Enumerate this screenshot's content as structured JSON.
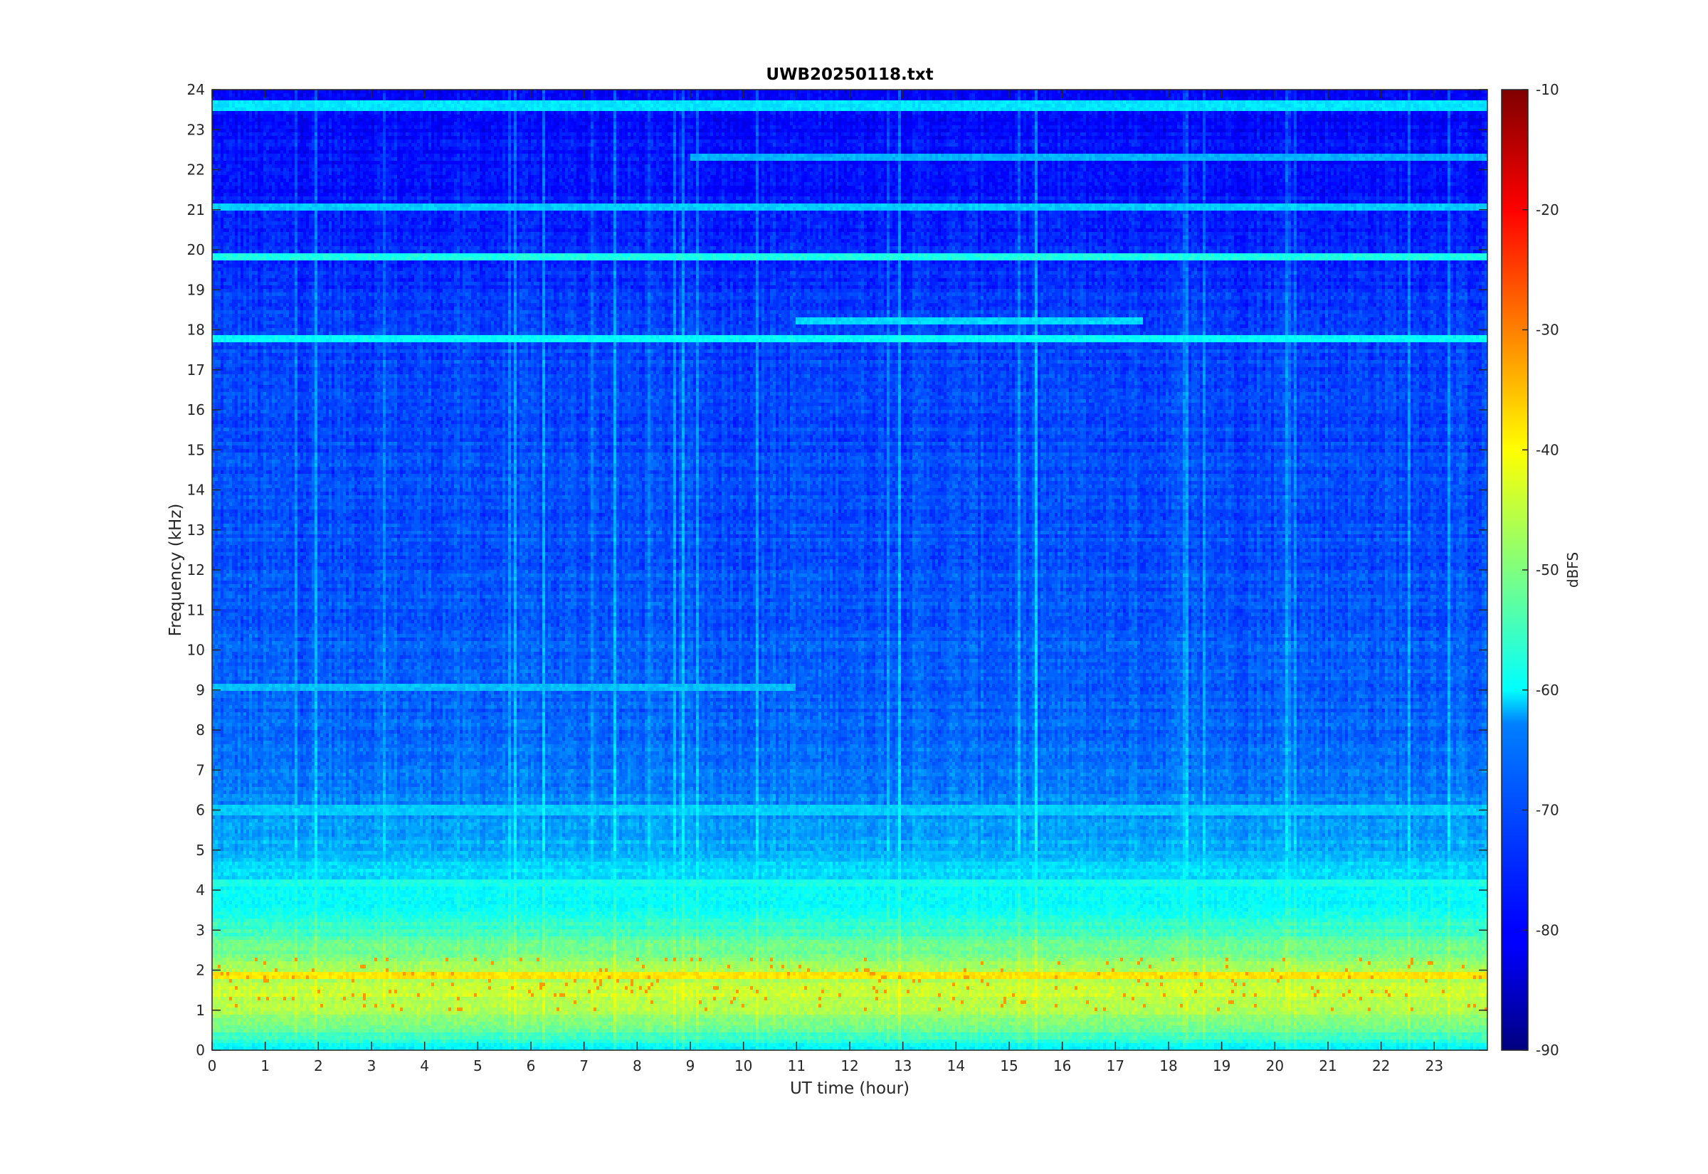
{
  "chart_data": {
    "type": "heatmap",
    "title": "UWB20250118.txt",
    "xlabel": "UT time (hour)",
    "ylabel": "Frequency (kHz)",
    "xlim": [
      0,
      24
    ],
    "ylim": [
      0,
      24
    ],
    "x_ticks": [
      "0",
      "1",
      "2",
      "3",
      "4",
      "5",
      "6",
      "7",
      "8",
      "9",
      "10",
      "11",
      "12",
      "13",
      "14",
      "15",
      "16",
      "17",
      "18",
      "19",
      "20",
      "21",
      "22",
      "23"
    ],
    "y_ticks": [
      "0",
      "1",
      "2",
      "3",
      "4",
      "5",
      "6",
      "7",
      "8",
      "9",
      "10",
      "11",
      "12",
      "13",
      "14",
      "15",
      "16",
      "17",
      "18",
      "19",
      "20",
      "21",
      "22",
      "23",
      "24"
    ],
    "colormap": "jet",
    "colorbar": {
      "label": "dBFS",
      "range": [
        -90,
        -10
      ],
      "ticks": [
        "-90",
        "-80",
        "-70",
        "-60",
        "-50",
        "-40",
        "-30",
        "-20",
        "-10"
      ]
    },
    "grid": false,
    "spectral_profile": {
      "description_levels_dbfs_by_frequency_khz": [
        {
          "f": 0.0,
          "level": -62
        },
        {
          "f": 0.5,
          "level": -52
        },
        {
          "f": 1.0,
          "level": -46
        },
        {
          "f": 1.5,
          "level": -44
        },
        {
          "f": 2.0,
          "level": -47
        },
        {
          "f": 2.5,
          "level": -51
        },
        {
          "f": 3.0,
          "level": -55
        },
        {
          "f": 3.5,
          "level": -58
        },
        {
          "f": 4.0,
          "level": -61
        },
        {
          "f": 4.5,
          "level": -63
        },
        {
          "f": 5.0,
          "level": -66
        },
        {
          "f": 6.0,
          "level": -69
        },
        {
          "f": 7.0,
          "level": -71
        },
        {
          "f": 8.0,
          "level": -72
        },
        {
          "f": 10.0,
          "level": -73
        },
        {
          "f": 14.0,
          "level": -74
        },
        {
          "f": 18.0,
          "level": -75
        },
        {
          "f": 21.0,
          "level": -78
        },
        {
          "f": 24.0,
          "level": -80
        }
      ],
      "persistent_lines": [
        {
          "f": 19.8,
          "level": -58,
          "t_start": 0,
          "t_end": 24
        },
        {
          "f": 18.2,
          "level": -63,
          "t_start": 11,
          "t_end": 17.5
        },
        {
          "f": 21.1,
          "level": -64,
          "t_start": 0,
          "t_end": 24
        },
        {
          "f": 22.3,
          "level": -66,
          "t_start": 9,
          "t_end": 24
        },
        {
          "f": 17.8,
          "level": -60,
          "t_start": 0,
          "t_end": 24
        },
        {
          "f": 23.6,
          "level": -62,
          "t_start": 0,
          "t_end": 24
        },
        {
          "f": 6.0,
          "level": -64,
          "t_start": 0,
          "t_end": 24
        },
        {
          "f": 9.1,
          "level": -65,
          "t_start": 0,
          "t_end": 11
        },
        {
          "f": 4.2,
          "level": -58,
          "t_start": 0,
          "t_end": 24
        },
        {
          "f": 1.9,
          "level": -38,
          "t_start": 0,
          "t_end": 24
        }
      ]
    }
  }
}
